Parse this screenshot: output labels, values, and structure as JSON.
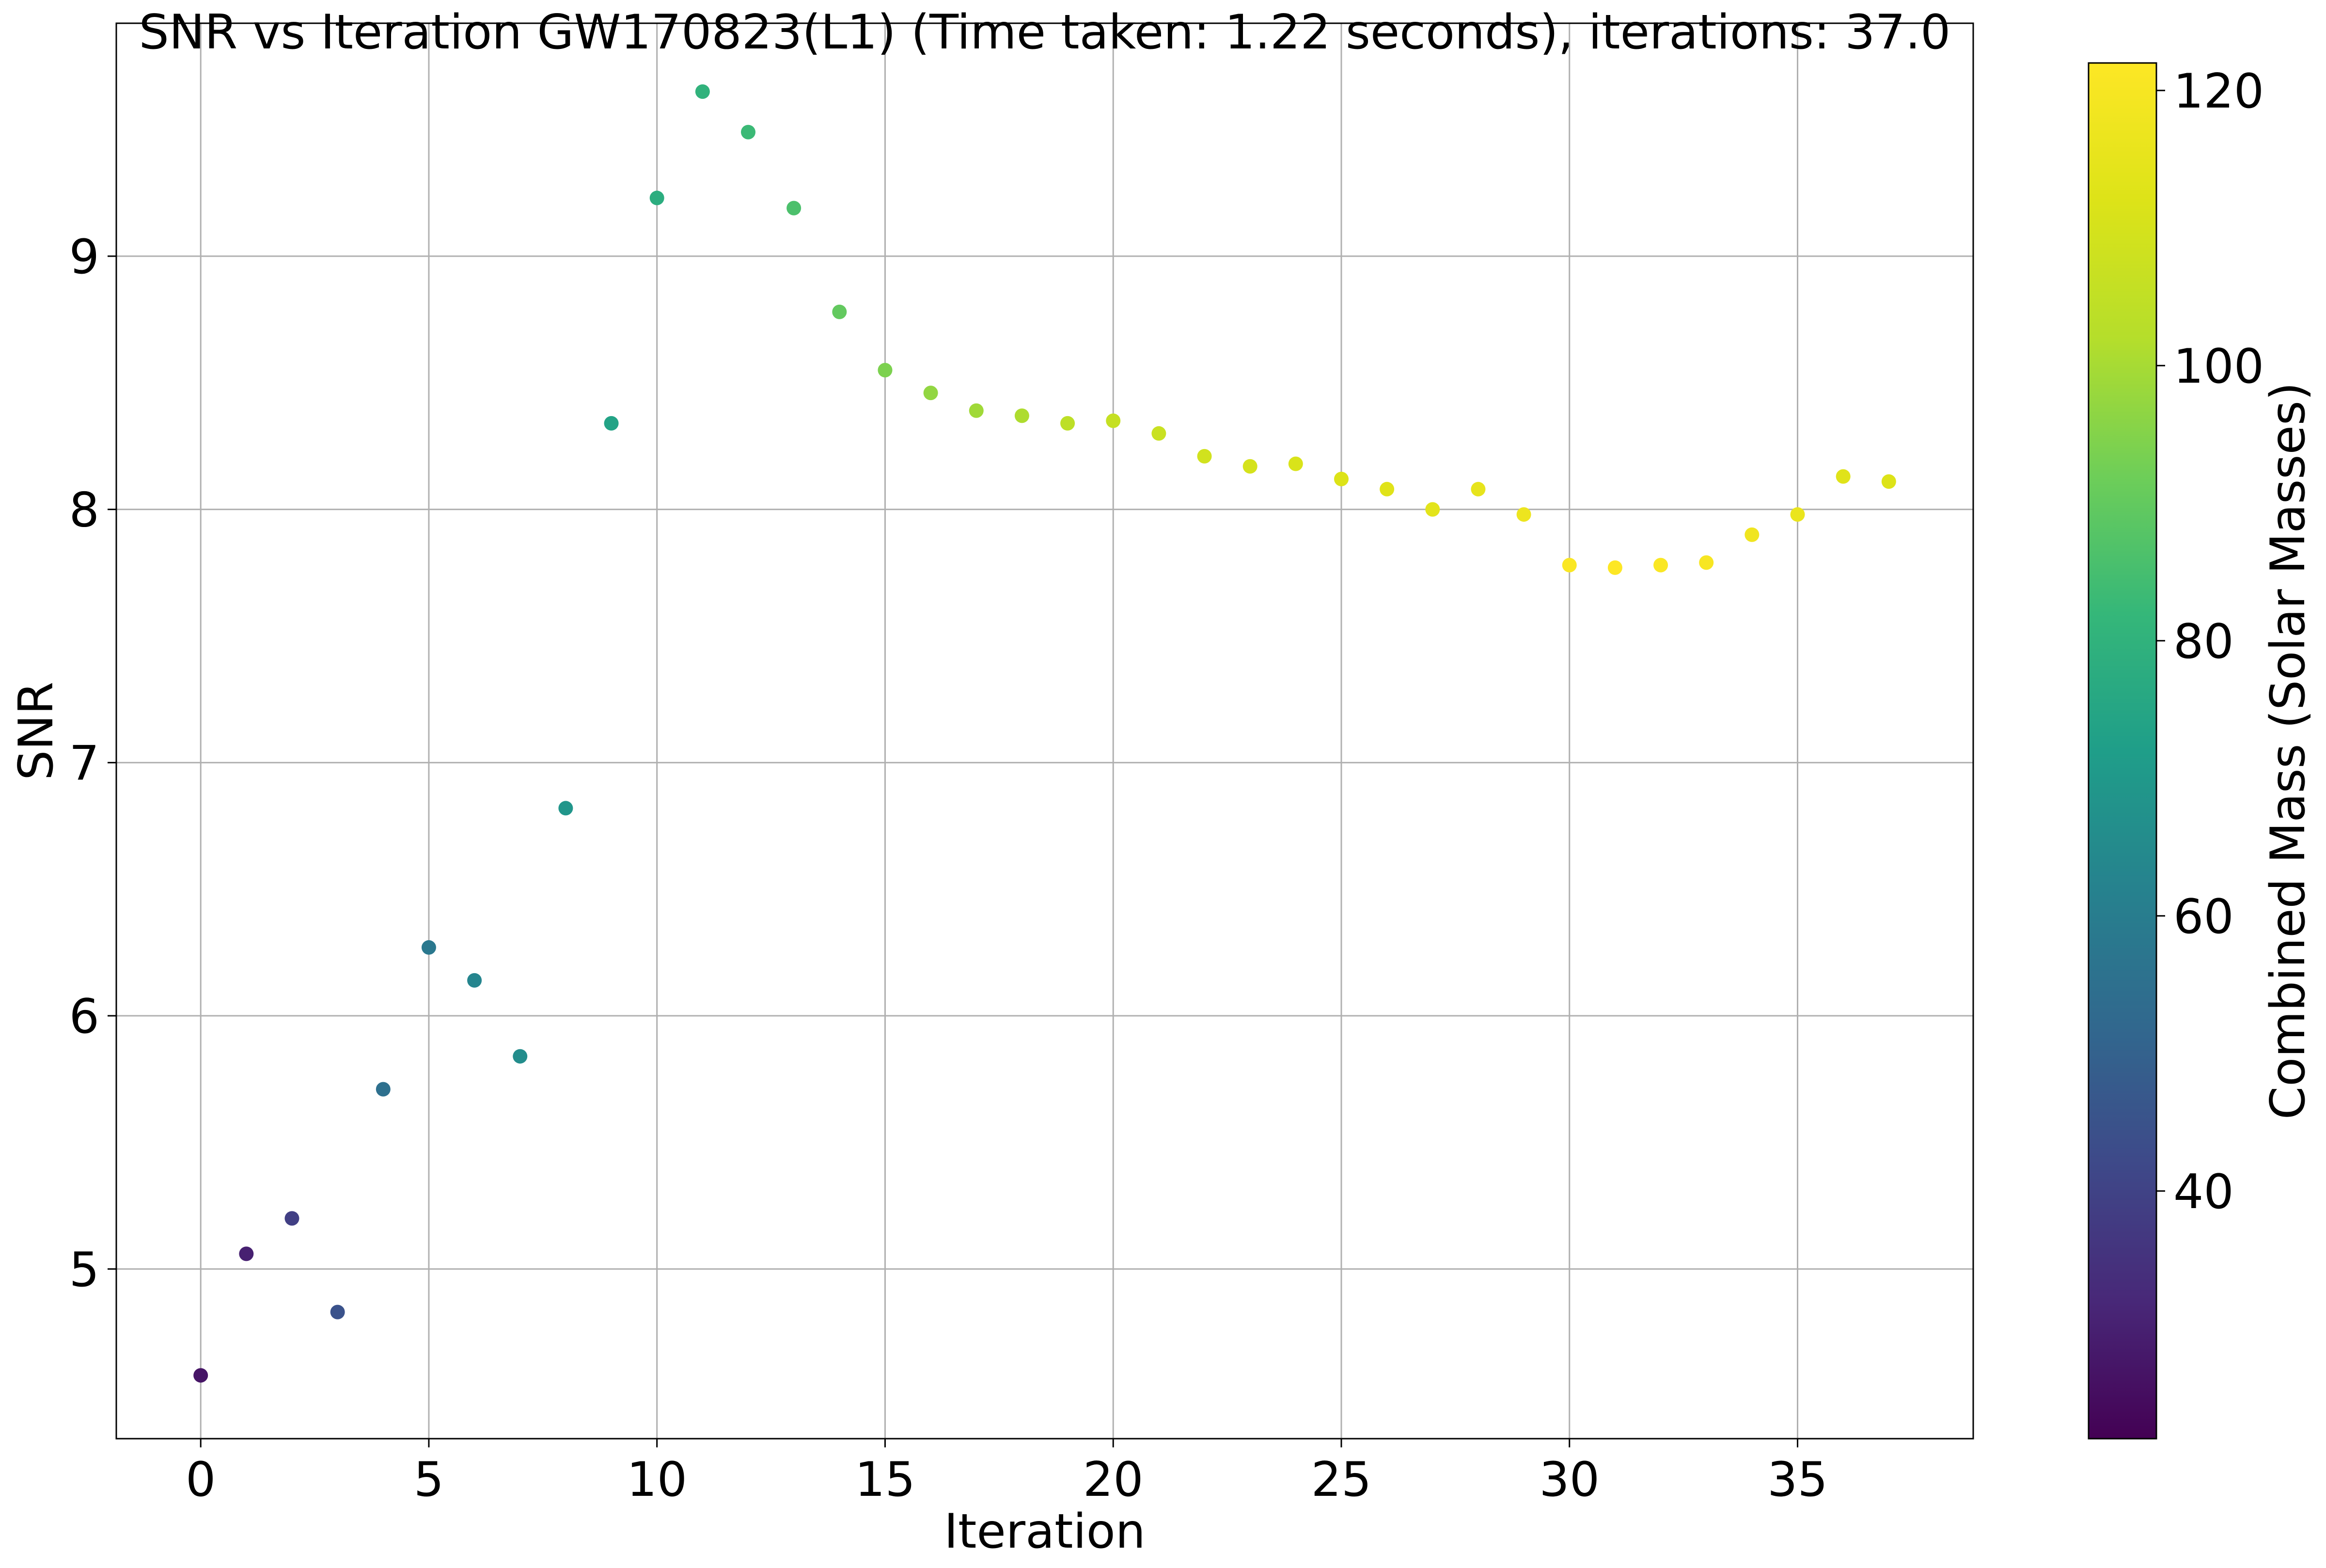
{
  "chart_data": {
    "type": "scatter",
    "title": "SNR vs Iteration GW170823(L1) (Time taken: 1.22 seconds), iterations: 37.0",
    "xlabel": "Iteration",
    "ylabel": "SNR",
    "xlim": [
      -1.85,
      38.85
    ],
    "ylim": [
      4.33,
      9.92
    ],
    "xticks": [
      0,
      5,
      10,
      15,
      20,
      25,
      30,
      35
    ],
    "yticks": [
      5,
      6,
      7,
      8,
      9
    ],
    "grid": true,
    "colorbar": {
      "label": "Combined Mass (Solar Masses)",
      "colormap": "viridis",
      "min": 22,
      "max": 122,
      "ticks": [
        40,
        60,
        80,
        100,
        120
      ]
    },
    "points": [
      {
        "x": 0,
        "y": 4.58,
        "mass": 27
      },
      {
        "x": 1,
        "y": 5.06,
        "mass": 30
      },
      {
        "x": 2,
        "y": 5.2,
        "mass": 39
      },
      {
        "x": 3,
        "y": 4.83,
        "mass": 45
      },
      {
        "x": 4,
        "y": 5.71,
        "mass": 55
      },
      {
        "x": 5,
        "y": 6.27,
        "mass": 58
      },
      {
        "x": 6,
        "y": 6.14,
        "mass": 63
      },
      {
        "x": 7,
        "y": 5.84,
        "mass": 66
      },
      {
        "x": 8,
        "y": 6.82,
        "mass": 69
      },
      {
        "x": 9,
        "y": 8.34,
        "mass": 74
      },
      {
        "x": 10,
        "y": 9.23,
        "mass": 78
      },
      {
        "x": 11,
        "y": 9.65,
        "mass": 80
      },
      {
        "x": 12,
        "y": 9.49,
        "mass": 83
      },
      {
        "x": 13,
        "y": 9.19,
        "mass": 86
      },
      {
        "x": 14,
        "y": 8.78,
        "mass": 90
      },
      {
        "x": 15,
        "y": 8.55,
        "mass": 94
      },
      {
        "x": 16,
        "y": 8.46,
        "mass": 97
      },
      {
        "x": 17,
        "y": 8.39,
        "mass": 99
      },
      {
        "x": 18,
        "y": 8.37,
        "mass": 101
      },
      {
        "x": 19,
        "y": 8.34,
        "mass": 104
      },
      {
        "x": 20,
        "y": 8.35,
        "mass": 106
      },
      {
        "x": 21,
        "y": 8.3,
        "mass": 107
      },
      {
        "x": 22,
        "y": 8.21,
        "mass": 109
      },
      {
        "x": 23,
        "y": 8.17,
        "mass": 110
      },
      {
        "x": 24,
        "y": 8.18,
        "mass": 111
      },
      {
        "x": 25,
        "y": 8.12,
        "mass": 112
      },
      {
        "x": 26,
        "y": 8.08,
        "mass": 113
      },
      {
        "x": 27,
        "y": 8.0,
        "mass": 114
      },
      {
        "x": 28,
        "y": 8.08,
        "mass": 115
      },
      {
        "x": 29,
        "y": 7.98,
        "mass": 117
      },
      {
        "x": 30,
        "y": 7.78,
        "mass": 121
      },
      {
        "x": 31,
        "y": 7.77,
        "mass": 122
      },
      {
        "x": 32,
        "y": 7.78,
        "mass": 121
      },
      {
        "x": 33,
        "y": 7.79,
        "mass": 120
      },
      {
        "x": 34,
        "y": 7.9,
        "mass": 118
      },
      {
        "x": 35,
        "y": 7.98,
        "mass": 116
      },
      {
        "x": 36,
        "y": 8.13,
        "mass": 113
      },
      {
        "x": 37,
        "y": 8.11,
        "mass": 112
      }
    ]
  }
}
